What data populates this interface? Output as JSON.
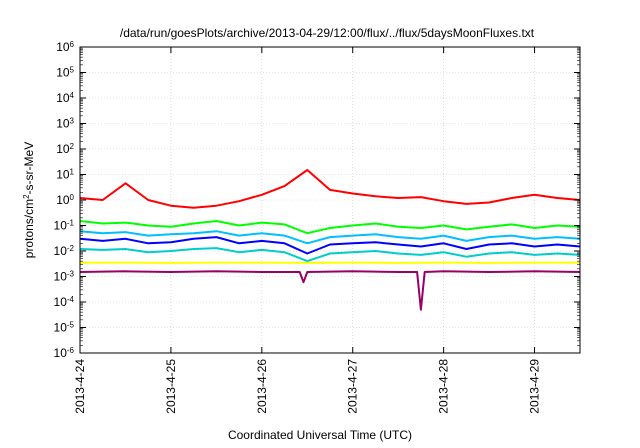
{
  "chart_data": {
    "type": "line",
    "title": "/data/run/goesPlots/archive/2013-04-29/12:00/flux/../flux/5daysMoonFluxes.txt",
    "xlabel": "Coordinated Universal Time (UTC)",
    "ylabel_parts": [
      "protons/cm",
      "2",
      "-s-sr-MeV"
    ],
    "y_scale": "log",
    "ylim": [
      1e-06,
      1000000.0
    ],
    "xlim": [
      "2013-04-24T00:00",
      "2013-04-29T12:00"
    ],
    "x_ticks": [
      "2013-4-24",
      "2013-4-25",
      "2013-4-26",
      "2013-4-27",
      "2013-4-28",
      "2013-4-29"
    ],
    "y_tick_exponents": [
      -6,
      -5,
      -4,
      -3,
      -2,
      -1,
      0,
      1,
      2,
      3,
      4,
      5,
      6
    ],
    "y_tick_base": "10",
    "grid": true,
    "legend": "none",
    "series": [
      {
        "color": "#ff0000",
        "x": [
          "2013-04-24T00:00",
          "2013-04-24T06:00",
          "2013-04-24T12:00",
          "2013-04-24T18:00",
          "2013-04-25T00:00",
          "2013-04-25T06:00",
          "2013-04-25T12:00",
          "2013-04-25T18:00",
          "2013-04-26T00:00",
          "2013-04-26T06:00",
          "2013-04-26T12:00",
          "2013-04-26T18:00",
          "2013-04-27T00:00",
          "2013-04-27T06:00",
          "2013-04-27T12:00",
          "2013-04-27T18:00",
          "2013-04-28T00:00",
          "2013-04-28T06:00",
          "2013-04-28T12:00",
          "2013-04-28T18:00",
          "2013-04-29T00:00",
          "2013-04-29T06:00",
          "2013-04-29T12:00"
        ],
        "y": [
          1.2,
          1.0,
          4.5,
          1.0,
          0.6,
          0.5,
          0.6,
          0.9,
          1.6,
          3.5,
          15,
          2.5,
          1.8,
          1.4,
          1.2,
          1.3,
          0.9,
          0.7,
          0.8,
          1.2,
          1.6,
          1.2,
          1.0
        ]
      },
      {
        "color": "#00ff00",
        "x": [
          "2013-04-24T00:00",
          "2013-04-24T06:00",
          "2013-04-24T12:00",
          "2013-04-24T18:00",
          "2013-04-25T00:00",
          "2013-04-25T06:00",
          "2013-04-25T12:00",
          "2013-04-25T18:00",
          "2013-04-26T00:00",
          "2013-04-26T06:00",
          "2013-04-26T12:00",
          "2013-04-26T18:00",
          "2013-04-27T00:00",
          "2013-04-27T06:00",
          "2013-04-27T12:00",
          "2013-04-27T18:00",
          "2013-04-28T00:00",
          "2013-04-28T06:00",
          "2013-04-28T12:00",
          "2013-04-28T18:00",
          "2013-04-29T00:00",
          "2013-04-29T06:00",
          "2013-04-29T12:00"
        ],
        "y": [
          0.15,
          0.12,
          0.13,
          0.1,
          0.09,
          0.12,
          0.15,
          0.1,
          0.13,
          0.11,
          0.05,
          0.08,
          0.1,
          0.12,
          0.09,
          0.08,
          0.1,
          0.07,
          0.09,
          0.11,
          0.08,
          0.1,
          0.09
        ]
      },
      {
        "color": "#00bfff",
        "x": [
          "2013-04-24T00:00",
          "2013-04-24T06:00",
          "2013-04-24T12:00",
          "2013-04-24T18:00",
          "2013-04-25T00:00",
          "2013-04-25T06:00",
          "2013-04-25T12:00",
          "2013-04-25T18:00",
          "2013-04-26T00:00",
          "2013-04-26T06:00",
          "2013-04-26T12:00",
          "2013-04-26T18:00",
          "2013-04-27T00:00",
          "2013-04-27T06:00",
          "2013-04-27T12:00",
          "2013-04-27T18:00",
          "2013-04-28T00:00",
          "2013-04-28T06:00",
          "2013-04-28T12:00",
          "2013-04-28T18:00",
          "2013-04-29T00:00",
          "2013-04-29T06:00",
          "2013-04-29T12:00"
        ],
        "y": [
          0.06,
          0.05,
          0.055,
          0.04,
          0.045,
          0.05,
          0.06,
          0.04,
          0.05,
          0.04,
          0.02,
          0.035,
          0.04,
          0.045,
          0.035,
          0.03,
          0.04,
          0.025,
          0.035,
          0.04,
          0.03,
          0.035,
          0.03
        ]
      },
      {
        "color": "#0000ff",
        "x": [
          "2013-04-24T00:00",
          "2013-04-24T06:00",
          "2013-04-24T12:00",
          "2013-04-24T18:00",
          "2013-04-25T00:00",
          "2013-04-25T06:00",
          "2013-04-25T12:00",
          "2013-04-25T18:00",
          "2013-04-26T00:00",
          "2013-04-26T06:00",
          "2013-04-26T12:00",
          "2013-04-26T18:00",
          "2013-04-27T00:00",
          "2013-04-27T06:00",
          "2013-04-27T12:00",
          "2013-04-27T18:00",
          "2013-04-28T00:00",
          "2013-04-28T06:00",
          "2013-04-28T12:00",
          "2013-04-28T18:00",
          "2013-04-29T00:00",
          "2013-04-29T06:00",
          "2013-04-29T12:00"
        ],
        "y": [
          0.03,
          0.025,
          0.03,
          0.02,
          0.022,
          0.03,
          0.035,
          0.02,
          0.025,
          0.02,
          0.008,
          0.018,
          0.02,
          0.022,
          0.018,
          0.015,
          0.02,
          0.012,
          0.018,
          0.02,
          0.015,
          0.018,
          0.015
        ]
      },
      {
        "color": "#00cccc",
        "x": [
          "2013-04-24T00:00",
          "2013-04-24T06:00",
          "2013-04-24T12:00",
          "2013-04-24T18:00",
          "2013-04-25T00:00",
          "2013-04-25T06:00",
          "2013-04-25T12:00",
          "2013-04-25T18:00",
          "2013-04-26T00:00",
          "2013-04-26T06:00",
          "2013-04-26T12:00",
          "2013-04-26T18:00",
          "2013-04-27T00:00",
          "2013-04-27T06:00",
          "2013-04-27T12:00",
          "2013-04-27T18:00",
          "2013-04-28T00:00",
          "2013-04-28T06:00",
          "2013-04-28T12:00",
          "2013-04-28T18:00",
          "2013-04-29T00:00",
          "2013-04-29T06:00",
          "2013-04-29T12:00"
        ],
        "y": [
          0.012,
          0.011,
          0.012,
          0.009,
          0.01,
          0.012,
          0.013,
          0.009,
          0.011,
          0.009,
          0.004,
          0.008,
          0.009,
          0.01,
          0.008,
          0.007,
          0.009,
          0.006,
          0.008,
          0.009,
          0.007,
          0.008,
          0.007
        ]
      },
      {
        "color": "#ffff00",
        "x": [
          "2013-04-24T00:00",
          "2013-04-24T12:00",
          "2013-04-25T00:00",
          "2013-04-25T12:00",
          "2013-04-26T00:00",
          "2013-04-26T12:00",
          "2013-04-27T00:00",
          "2013-04-27T12:00",
          "2013-04-28T00:00",
          "2013-04-28T12:00",
          "2013-04-29T00:00",
          "2013-04-29T12:00"
        ],
        "y": [
          0.0035,
          0.0035,
          0.0034,
          0.0035,
          0.0035,
          0.0034,
          0.0035,
          0.0034,
          0.0035,
          0.0034,
          0.0035,
          0.0035
        ]
      },
      {
        "color": "#990066",
        "x": [
          "2013-04-24T00:00",
          "2013-04-24T12:00",
          "2013-04-25T00:00",
          "2013-04-25T12:00",
          "2013-04-26T00:00",
          "2013-04-26T10:00",
          "2013-04-26T11:00",
          "2013-04-26T12:00",
          "2013-04-27T00:00",
          "2013-04-27T12:00",
          "2013-04-27T17:00",
          "2013-04-27T18:00",
          "2013-04-27T19:00",
          "2013-04-28T00:00",
          "2013-04-28T12:00",
          "2013-04-29T00:00",
          "2013-04-29T12:00"
        ],
        "y": [
          0.0015,
          0.0016,
          0.0015,
          0.0016,
          0.0015,
          0.0015,
          0.0006,
          0.0015,
          0.0016,
          0.0015,
          0.0015,
          5e-05,
          0.0015,
          0.0016,
          0.0015,
          0.0016,
          0.0015
        ]
      }
    ]
  }
}
